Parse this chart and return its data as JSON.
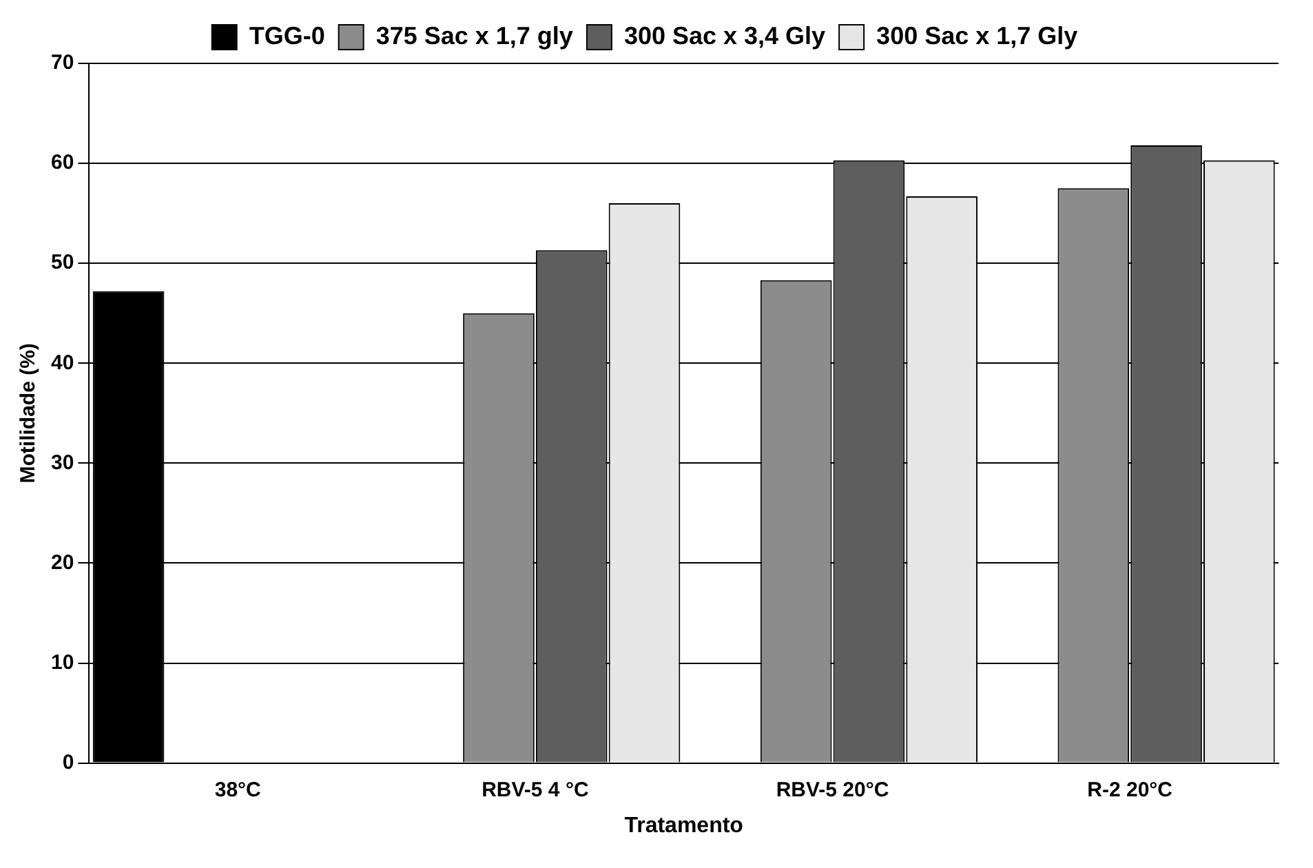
{
  "chart_data": {
    "type": "bar",
    "xlabel": "Tratamento",
    "ylabel": "Motilidade (%)",
    "categories": [
      "38°C",
      "RBV-5 4 °C",
      "RBV-5 20°C",
      "R-2 20°C"
    ],
    "series": [
      {
        "name": "TGG-0",
        "color": "#000000",
        "values": [
          47.2,
          0,
          0,
          0
        ]
      },
      {
        "name": "375 Sac x 1,7 gly",
        "color": "#8c8c8c",
        "values": [
          0,
          45,
          48.3,
          57.5
        ]
      },
      {
        "name": "300 Sac x 3,4 Gly",
        "color": "#5e5e5e",
        "values": [
          0,
          51.3,
          60.3,
          61.8
        ]
      },
      {
        "name": "300 Sac x 1,7 Gly",
        "color": "#e6e6e6",
        "values": [
          0,
          56,
          56.7,
          60.3
        ]
      }
    ],
    "ylim": [
      0,
      70
    ],
    "yticks": [
      0,
      10,
      20,
      30,
      40,
      50,
      60,
      70
    ],
    "grid": "y",
    "legend": "top"
  }
}
